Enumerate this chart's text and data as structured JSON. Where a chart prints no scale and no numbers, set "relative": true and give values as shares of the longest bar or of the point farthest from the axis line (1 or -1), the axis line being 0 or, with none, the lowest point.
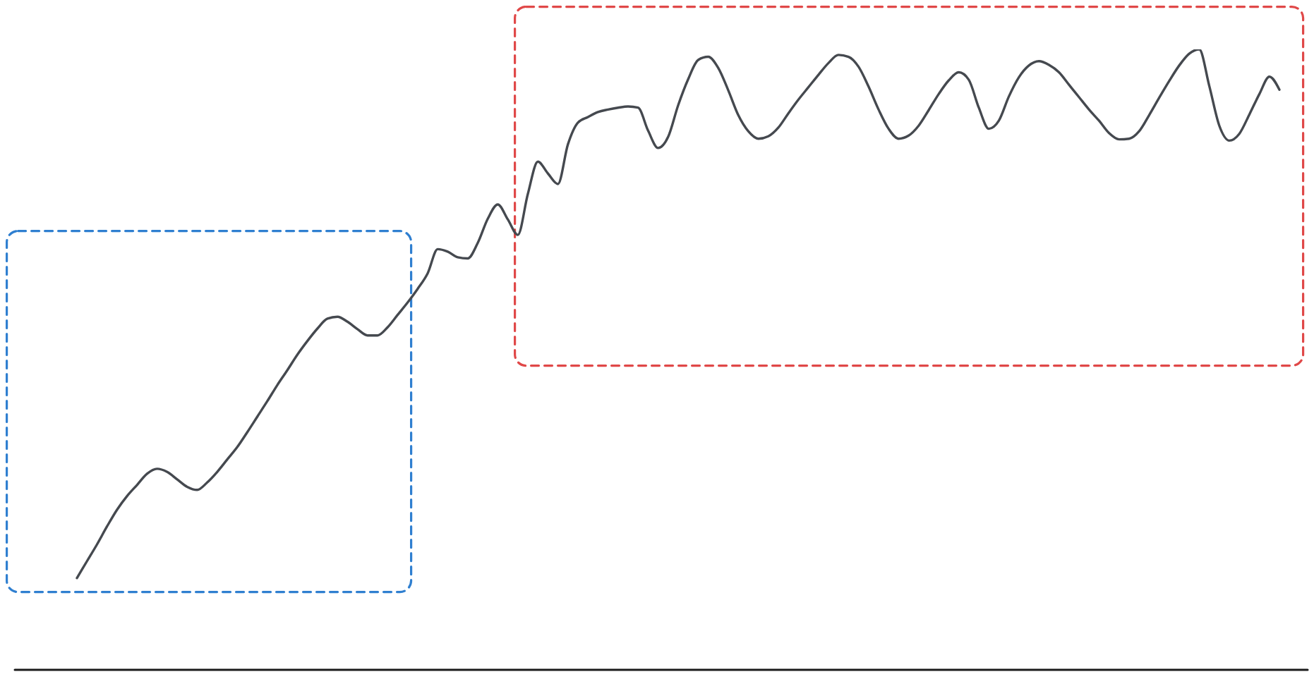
{
  "chart_data": {
    "type": "line",
    "relative": true,
    "categories": [
      null,
      null,
      null,
      null,
      null,
      null,
      null,
      null,
      null,
      null,
      null,
      null,
      null,
      null,
      null,
      null,
      null,
      null,
      null,
      null,
      null,
      null,
      null,
      null,
      null,
      null,
      null,
      null,
      null,
      null,
      null,
      null,
      null,
      null,
      null,
      null,
      null,
      null,
      null,
      null,
      null,
      null,
      null,
      null,
      null,
      null,
      null,
      null,
      null,
      null,
      null,
      null,
      null,
      null,
      null,
      null,
      null,
      null,
      null,
      null,
      null,
      null,
      null,
      null,
      null,
      null,
      null,
      null,
      null,
      null,
      null,
      null,
      null,
      null,
      null,
      null,
      null,
      null,
      null,
      null,
      null,
      null,
      null,
      null,
      null,
      null,
      null,
      null,
      null,
      null,
      null,
      null,
      null,
      null,
      null,
      null,
      null,
      null,
      null,
      null,
      null,
      null,
      null,
      null,
      null,
      null,
      null,
      null,
      null,
      null,
      null,
      null,
      null,
      null,
      null,
      null,
      null,
      null,
      null,
      null,
      null
    ],
    "series": [
      {
        "color": "#45494f",
        "values": [
          0.148,
          0.175,
          0.202,
          0.231,
          0.258,
          0.28,
          0.298,
          0.316,
          0.324,
          0.319,
          0.307,
          0.295,
          0.29,
          0.302,
          0.319,
          0.339,
          0.359,
          0.383,
          0.408,
          0.433,
          0.459,
          0.483,
          0.508,
          0.53,
          0.55,
          0.566,
          0.569,
          0.561,
          0.549,
          0.539,
          0.539,
          0.552,
          0.572,
          0.592,
          0.614,
          0.639,
          0.678,
          0.674,
          0.665,
          0.663,
          0.688,
          0.727,
          0.75,
          0.726,
          0.701,
          0.767,
          0.819,
          0.8,
          0.783,
          0.847,
          0.882,
          0.891,
          0.899,
          0.903,
          0.906,
          0.908,
          0.906,
          0.869,
          0.841,
          0.859,
          0.91,
          0.952,
          0.983,
          0.988,
          0.97,
          0.934,
          0.894,
          0.868,
          0.856,
          0.86,
          0.874,
          0.897,
          0.919,
          0.939,
          0.959,
          0.978,
          0.991,
          0.988,
          0.972,
          0.94,
          0.903,
          0.872,
          0.856,
          0.861,
          0.877,
          0.902,
          0.928,
          0.95,
          0.963,
          0.951,
          0.906,
          0.872,
          0.885,
          0.924,
          0.955,
          0.974,
          0.981,
          0.975,
          0.963,
          0.943,
          0.923,
          0.903,
          0.885,
          0.865,
          0.855,
          0.856,
          0.868,
          0.894,
          0.922,
          0.949,
          0.974,
          0.993,
          1,
          0.941,
          0.877,
          0.853,
          0.864,
          0.895,
          0.928,
          0.956,
          0.935
        ]
      }
    ]
  }
}
